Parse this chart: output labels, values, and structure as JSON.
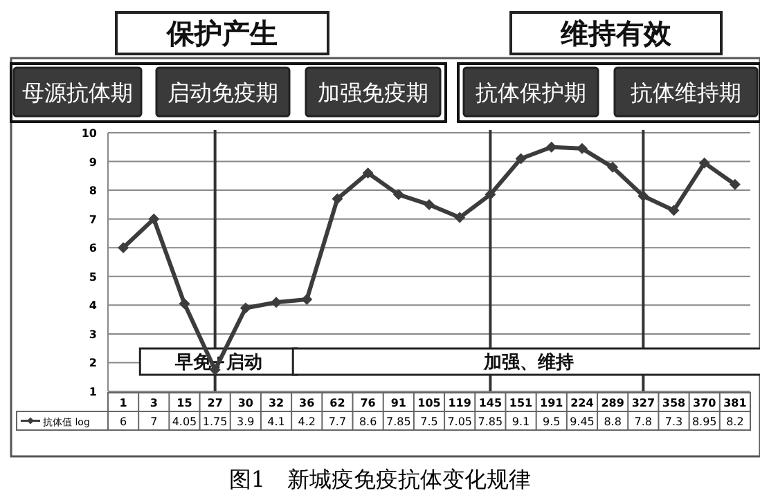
{
  "chart_data": {
    "type": "line",
    "title": "图1　新城疫免疫抗体变化规律",
    "categories": [
      "1",
      "3",
      "15",
      "27",
      "30",
      "32",
      "36",
      "62",
      "76",
      "91",
      "105",
      "119",
      "145",
      "151",
      "191",
      "224",
      "289",
      "327",
      "358",
      "370",
      "381"
    ],
    "series": [
      {
        "name": "抗体值 log",
        "color": "#3c3c3c",
        "values": [
          6,
          7,
          4.05,
          1.75,
          3.9,
          4.1,
          4.2,
          7.7,
          8.6,
          7.85,
          7.5,
          7.05,
          7.85,
          9.1,
          9.5,
          9.45,
          8.8,
          7.8,
          7.3,
          8.95,
          8.2
        ]
      }
    ],
    "ylim": [
      1,
      10
    ],
    "yticks": [
      1,
      2,
      3,
      4,
      5,
      6,
      7,
      8,
      9,
      10
    ],
    "grid": "y",
    "marker": "diamond",
    "line_style": "solid",
    "data_labels": true,
    "legend": "bottom left",
    "ref_lines": [
      {
        "axis": "x",
        "value": "27"
      },
      {
        "axis": "x",
        "value": "145"
      },
      {
        "axis": "x",
        "value": "327"
      }
    ],
    "annotations": [
      "保护产生",
      "维持有效",
      "母源抗体期",
      "启动免疫期",
      "加强免疫期",
      "抗体保护期",
      "抗体维持期",
      "早免+启动",
      "加强、维持"
    ]
  }
}
